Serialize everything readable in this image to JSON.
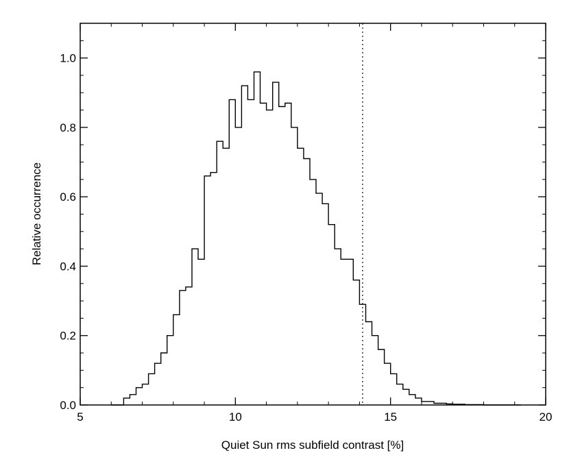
{
  "chart_data": {
    "type": "line",
    "title": "",
    "xlabel": "Quiet Sun rms subfield contrast [%]",
    "ylabel": "Relative occurrence",
    "xlim": [
      5,
      20
    ],
    "ylim": [
      0,
      1.1
    ],
    "x_ticks": [
      5,
      10,
      15,
      20
    ],
    "x_tick_labels": [
      "5",
      "10",
      "15",
      "20"
    ],
    "y_ticks": [
      0.0,
      0.2,
      0.4,
      0.6,
      0.8,
      1.0
    ],
    "y_tick_labels": [
      "0.0",
      "0.2",
      "0.4",
      "0.6",
      "0.8",
      "1.0"
    ],
    "grid": false,
    "line_color": "#000000",
    "reference_line": {
      "x": 14.1,
      "style": "dotted"
    },
    "series": [
      {
        "style": "histogram-step",
        "x": [
          6.0,
          6.2,
          6.4,
          6.6,
          6.8,
          7.0,
          7.2,
          7.4,
          7.6,
          7.8,
          8.0,
          8.2,
          8.4,
          8.6,
          8.8,
          9.0,
          9.2,
          9.4,
          9.6,
          9.8,
          10.0,
          10.2,
          10.4,
          10.6,
          10.8,
          11.0,
          11.2,
          11.4,
          11.6,
          11.8,
          12.0,
          12.2,
          12.4,
          12.6,
          12.8,
          13.0,
          13.2,
          13.4,
          13.6,
          13.8,
          14.0,
          14.2,
          14.4,
          14.6,
          14.8,
          15.0,
          15.2,
          15.4,
          15.6,
          15.8,
          16.0,
          16.2,
          16.4,
          16.6,
          16.8,
          17.0,
          17.2,
          17.4,
          17.6,
          17.8,
          18.0,
          18.4,
          18.8,
          19.2
        ],
        "y": [
          0.0,
          0.0,
          0.02,
          0.03,
          0.05,
          0.06,
          0.09,
          0.12,
          0.15,
          0.2,
          0.26,
          0.33,
          0.34,
          0.45,
          0.42,
          0.66,
          0.67,
          0.76,
          0.74,
          0.88,
          0.8,
          0.92,
          0.88,
          0.96,
          0.87,
          0.85,
          0.93,
          0.86,
          0.87,
          0.8,
          0.74,
          0.71,
          0.65,
          0.61,
          0.58,
          0.52,
          0.45,
          0.42,
          0.42,
          0.36,
          0.29,
          0.24,
          0.2,
          0.16,
          0.12,
          0.09,
          0.06,
          0.045,
          0.03,
          0.02,
          0.01,
          0.01,
          0.005,
          0.005,
          0.003,
          0.002,
          0.002,
          0.001,
          0.001,
          0.001,
          0.0,
          0.0,
          0.0,
          0.0
        ]
      }
    ]
  }
}
